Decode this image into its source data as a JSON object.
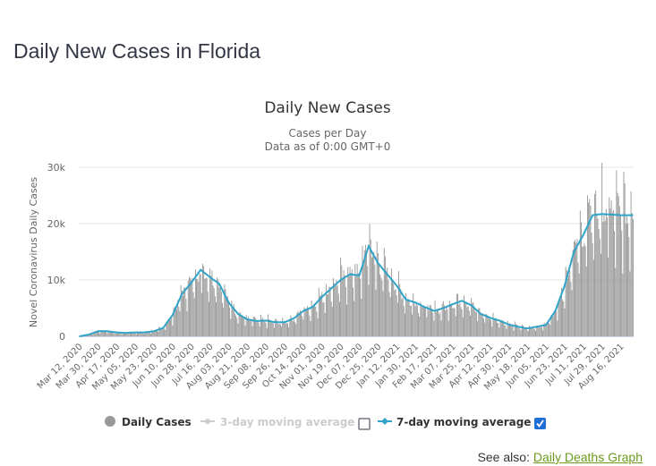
{
  "page_title": "Daily New Cases in Florida",
  "see_also": {
    "label": "See also:",
    "link_text": "Daily Deaths Graph"
  },
  "legend": {
    "daily_cases": "Daily Cases",
    "ma3": "3-day moving average",
    "ma7": "7-day moving average",
    "ma3_checked": false,
    "ma7_checked": true
  },
  "colors": {
    "bars": "#999999",
    "ma7": "#2fa3c8",
    "ma3_disabled": "#cccccc",
    "checkbox": "#1f6fd6",
    "link": "#6b9b1e"
  },
  "chart_data": {
    "type": "bar",
    "title": "Daily New Cases",
    "subtitle1": "Cases per Day",
    "subtitle2": "Data as of 0:00 GMT+0",
    "ylabel": "Novel Coronavirus Daily Cases",
    "xlabel": "",
    "ylim": [
      0,
      30000
    ],
    "y_ticks": [
      "0",
      "10k",
      "20k",
      "30k"
    ],
    "y_tick_values": [
      0,
      10000,
      20000,
      30000
    ],
    "grid": true,
    "x_tick_labels": [
      "Mar 12, 2020",
      "Mar 30, 2020",
      "Apr 17, 2020",
      "May 05, 2020",
      "May 23, 2020",
      "Jun 10, 2020",
      "Jun 28, 2020",
      "Jul 16, 2020",
      "Aug 03, 2020",
      "Aug 21, 2020",
      "Sep 08, 2020",
      "Sep 26, 2020",
      "Oct 14, 2020",
      "Nov 01, 2020",
      "Nov 19, 2020",
      "Dec 07, 2020",
      "Dec 25, 2020",
      "Jan 12, 2021",
      "Jan 30, 2021",
      "Feb 17, 2021",
      "Mar 07, 2021",
      "Mar 25, 2021",
      "Apr 12, 2021",
      "Apr 30, 2021",
      "May 18, 2021",
      "Jun 05, 2021",
      "Jun 23, 2021",
      "Jul 11, 2021",
      "Jul 29, 2021",
      "Aug 16, 2021"
    ],
    "tick_interval_days": 18,
    "total_days": 535,
    "series": [
      {
        "name": "7-day moving average",
        "x_day_index": [
          0,
          9,
          18,
          27,
          36,
          45,
          54,
          63,
          72,
          81,
          90,
          99,
          108,
          117,
          126,
          135,
          144,
          153,
          162,
          171,
          180,
          189,
          198,
          207,
          216,
          225,
          234,
          243,
          252,
          261,
          270,
          279,
          288,
          297,
          306,
          315,
          324,
          333,
          342,
          351,
          360,
          369,
          378,
          387,
          396,
          405,
          414,
          423,
          432,
          441,
          450,
          459,
          468,
          477,
          486,
          495,
          504,
          513,
          522,
          534
        ],
        "values": [
          0,
          300,
          900,
          900,
          700,
          600,
          700,
          700,
          900,
          1500,
          3800,
          7500,
          9500,
          11800,
          10500,
          9300,
          6000,
          4000,
          3000,
          2700,
          2800,
          2500,
          2500,
          3200,
          4500,
          5200,
          7000,
          8500,
          10000,
          11000,
          10800,
          16000,
          13000,
          11000,
          9000,
          6500,
          6000,
          5200,
          4500,
          5000,
          5700,
          6300,
          5500,
          4000,
          3300,
          2800,
          2100,
          1700,
          1400,
          1700,
          2000,
          4500,
          9000,
          15000,
          18000,
          21500,
          21700,
          21600,
          21500,
          21500
        ]
      }
    ]
  }
}
